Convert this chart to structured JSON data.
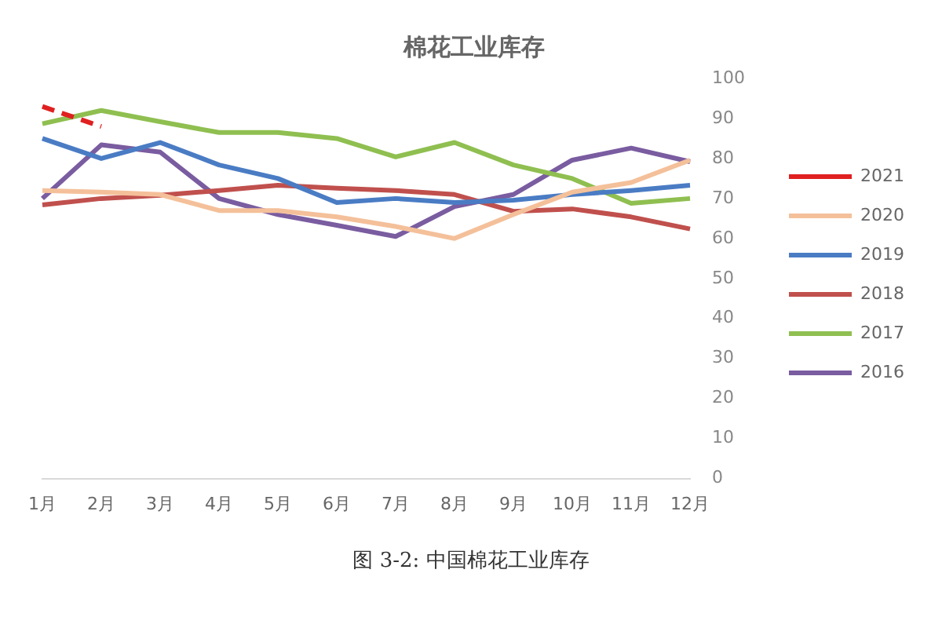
{
  "chart_data": {
    "type": "line",
    "title": "棉花工业库存",
    "categories": [
      "1月",
      "2月",
      "3月",
      "4月",
      "5月",
      "6月",
      "7月",
      "8月",
      "9月",
      "10月",
      "11月",
      "12月"
    ],
    "series": [
      {
        "name": "2021",
        "color": "#e02020",
        "line_style": "dashed",
        "values": [
          93,
          88,
          null,
          null,
          null,
          null,
          null,
          null,
          null,
          null,
          null,
          null
        ]
      },
      {
        "name": "2020",
        "color": "#f4c09a",
        "values": [
          72,
          71.6,
          71,
          67,
          67,
          65.4,
          63,
          60,
          66,
          71.6,
          74,
          79.6
        ]
      },
      {
        "name": "2019",
        "color": "#4a7cc4",
        "values": [
          85,
          80,
          84,
          78.4,
          75,
          69,
          70,
          69,
          69.6,
          71,
          72,
          73.3
        ]
      },
      {
        "name": "2018",
        "color": "#c0504d",
        "values": [
          68.4,
          70,
          70.8,
          72,
          73.3,
          72.6,
          72,
          71,
          66.8,
          67.4,
          65.4,
          62.4
        ]
      },
      {
        "name": "2017",
        "color": "#8fbf50",
        "values": [
          88.7,
          92,
          89.2,
          86.5,
          86.5,
          85,
          80.4,
          84,
          78.4,
          75,
          68.8,
          70
        ]
      },
      {
        "name": "2016",
        "color": "#7a5ca0",
        "values": [
          70,
          83.4,
          81.6,
          70,
          66,
          63.3,
          60.5,
          68,
          71,
          79.6,
          82.6,
          79.2
        ]
      }
    ],
    "ylim": [
      0,
      100
    ],
    "yticks": [
      0,
      10,
      20,
      30,
      40,
      50,
      60,
      70,
      80,
      90,
      100
    ],
    "grid": false,
    "legend": "right",
    "marker": "none",
    "line_style": "solid",
    "annotations": [
      "图 3-2: 中国棉花工业库存"
    ]
  }
}
